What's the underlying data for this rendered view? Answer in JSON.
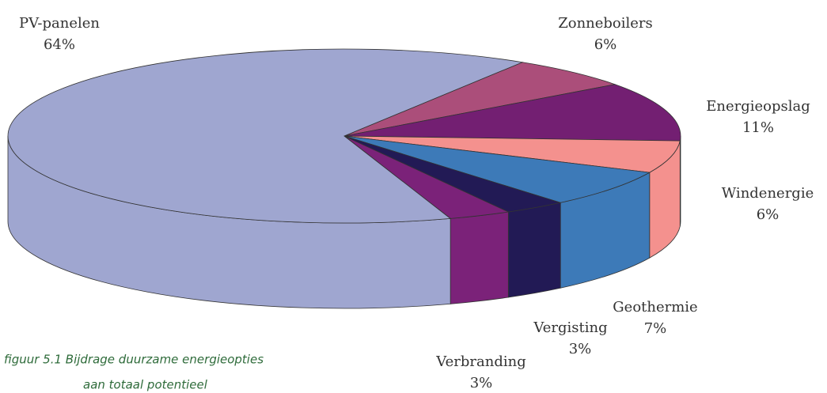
{
  "chart_data": {
    "type": "pie3d",
    "categories": [
      "Zonneboilers",
      "Energieopslag",
      "Windenergie",
      "Geothermie",
      "Vergisting",
      "Verbranding",
      "PV-panelen"
    ],
    "values": [
      6,
      11,
      6,
      7,
      3,
      3,
      64
    ],
    "value_labels": [
      "6%",
      "11%",
      "6%",
      "7%",
      "3%",
      "3%",
      "64%"
    ],
    "colors": [
      "#ab4e7a",
      "#731f72",
      "#f4918e",
      "#3d7ab8",
      "#221a55",
      "#7b2279",
      "#9fa6d0"
    ],
    "caption": [
      "figuur 5.1 Bijdrage duurzame energieopties",
      "aan totaal potentieel"
    ]
  }
}
